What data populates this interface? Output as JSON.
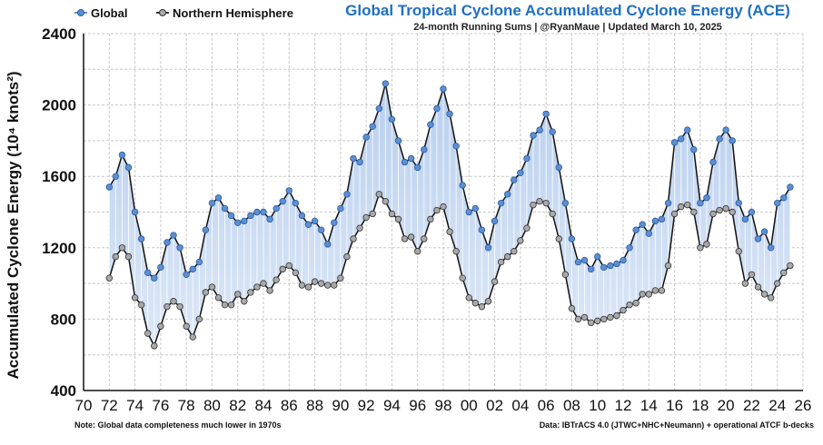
{
  "chart_data": {
    "type": "line",
    "title": "Global Tropical Cyclone Accumulated Cyclone Energy (ACE)",
    "subtitle": "24-month Running Sums | @RyanMaue | Updated March 10, 2025",
    "ylabel": "Accumulated Cyclone Energy (10⁴ knots²)",
    "xlabel": "",
    "note_left": "Note:  Global data completeness much lower in 1970s",
    "note_right": "Data: IBTrACS 4.0 (JTWC+NHC+Neumann) + operational ATCF b-decks",
    "ylim": [
      400,
      2400
    ],
    "xlim": [
      1970,
      2026
    ],
    "grid": true,
    "legend_position": "top-left",
    "y_ticks": [
      400,
      800,
      1200,
      1600,
      2000,
      2400
    ],
    "x_ticks": [
      1970,
      1972,
      1974,
      1976,
      1978,
      1980,
      1982,
      1984,
      1986,
      1988,
      1990,
      1992,
      1994,
      1996,
      1998,
      2000,
      2002,
      2004,
      2006,
      2008,
      2010,
      2012,
      2014,
      2016,
      2018,
      2020,
      2022,
      2024,
      2026
    ],
    "x_tick_labels": [
      "70",
      "72",
      "74",
      "76",
      "78",
      "80",
      "82",
      "84",
      "86",
      "88",
      "90",
      "92",
      "94",
      "96",
      "98",
      "00",
      "02",
      "04",
      "06",
      "08",
      "10",
      "12",
      "14",
      "16",
      "18",
      "20",
      "22",
      "24",
      "26"
    ],
    "x": [
      1972.0,
      1972.5,
      1973.0,
      1973.5,
      1974.0,
      1974.5,
      1975.0,
      1975.5,
      1976.0,
      1976.5,
      1977.0,
      1977.5,
      1978.0,
      1978.5,
      1979.0,
      1979.5,
      1980.0,
      1980.5,
      1981.0,
      1981.5,
      1982.0,
      1982.5,
      1983.0,
      1983.5,
      1984.0,
      1984.5,
      1985.0,
      1985.5,
      1986.0,
      1986.5,
      1987.0,
      1987.5,
      1988.0,
      1988.5,
      1989.0,
      1989.5,
      1990.0,
      1990.5,
      1991.0,
      1991.5,
      1992.0,
      1992.5,
      1993.0,
      1993.5,
      1994.0,
      1994.5,
      1995.0,
      1995.5,
      1996.0,
      1996.5,
      1997.0,
      1997.5,
      1998.0,
      1998.5,
      1999.0,
      1999.5,
      2000.0,
      2000.5,
      2001.0,
      2001.5,
      2002.0,
      2002.5,
      2003.0,
      2003.5,
      2004.0,
      2004.5,
      2005.0,
      2005.5,
      2006.0,
      2006.5,
      2007.0,
      2007.5,
      2008.0,
      2008.5,
      2009.0,
      2009.5,
      2010.0,
      2010.5,
      2011.0,
      2011.5,
      2012.0,
      2012.5,
      2013.0,
      2013.5,
      2014.0,
      2014.5,
      2015.0,
      2015.5,
      2016.0,
      2016.5,
      2017.0,
      2017.5,
      2018.0,
      2018.5,
      2019.0,
      2019.5,
      2020.0,
      2020.5,
      2021.0,
      2021.5,
      2022.0,
      2022.5,
      2023.0,
      2023.5,
      2024.0,
      2024.5,
      2025.0
    ],
    "series": [
      {
        "name": "Global",
        "color": "#5b8fd6",
        "values": [
          1540,
          1600,
          1720,
          1650,
          1400,
          1250,
          1060,
          1030,
          1090,
          1230,
          1270,
          1200,
          1050,
          1080,
          1120,
          1300,
          1450,
          1480,
          1420,
          1380,
          1340,
          1350,
          1380,
          1400,
          1400,
          1360,
          1420,
          1460,
          1520,
          1450,
          1380,
          1330,
          1350,
          1300,
          1220,
          1340,
          1420,
          1500,
          1700,
          1680,
          1820,
          1880,
          1980,
          2120,
          1920,
          1800,
          1680,
          1700,
          1650,
          1750,
          1890,
          1980,
          2090,
          1950,
          1770,
          1550,
          1400,
          1420,
          1300,
          1200,
          1350,
          1450,
          1500,
          1580,
          1620,
          1700,
          1830,
          1860,
          1950,
          1850,
          1650,
          1450,
          1250,
          1120,
          1130,
          1080,
          1150,
          1090,
          1100,
          1110,
          1130,
          1200,
          1300,
          1330,
          1280,
          1350,
          1360,
          1450,
          1790,
          1810,
          1860,
          1750,
          1450,
          1480,
          1680,
          1810,
          1860,
          1800,
          1450,
          1360,
          1400,
          1250,
          1290,
          1200,
          1450,
          1480,
          1540
        ]
      },
      {
        "name": "Northern Hemisphere",
        "color": "#a9a9a9",
        "values": [
          1030,
          1150,
          1200,
          1150,
          920,
          880,
          720,
          650,
          760,
          870,
          900,
          870,
          760,
          700,
          800,
          950,
          980,
          920,
          880,
          880,
          940,
          900,
          950,
          980,
          1000,
          960,
          1020,
          1080,
          1100,
          1060,
          990,
          980,
          1010,
          1000,
          990,
          990,
          1030,
          1150,
          1250,
          1310,
          1370,
          1390,
          1500,
          1460,
          1390,
          1360,
          1250,
          1260,
          1180,
          1250,
          1360,
          1410,
          1430,
          1290,
          1180,
          1030,
          920,
          890,
          870,
          900,
          1010,
          1120,
          1150,
          1180,
          1240,
          1310,
          1440,
          1460,
          1450,
          1390,
          1250,
          1050,
          860,
          800,
          810,
          780,
          790,
          800,
          810,
          820,
          850,
          880,
          890,
          940,
          940,
          960,
          960,
          1100,
          1390,
          1430,
          1440,
          1400,
          1200,
          1220,
          1390,
          1410,
          1420,
          1400,
          1180,
          1000,
          1050,
          980,
          940,
          920,
          1000,
          1060,
          1100
        ]
      }
    ]
  }
}
